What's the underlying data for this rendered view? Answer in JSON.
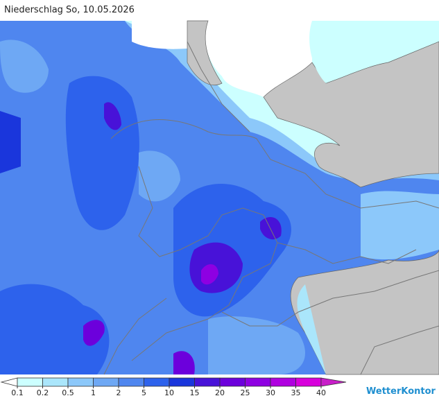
{
  "header": {
    "title": "Niederschlag So, 10.05.2026"
  },
  "legend": {
    "ticks": [
      0.1,
      0.2,
      0.5,
      1,
      2,
      5,
      10,
      15,
      20,
      25,
      30,
      35,
      40
    ],
    "colors": [
      "#ffffff",
      "#ccffff",
      "#aae6fb",
      "#8cc8fa",
      "#6ea8f4",
      "#4f86ef",
      "#2d62ec",
      "#1a36dc",
      "#4812d8",
      "#6c00dc",
      "#8e00e2",
      "#b000e0",
      "#d800dc",
      "#c81ec8"
    ]
  },
  "brand": "WetterKontor"
}
